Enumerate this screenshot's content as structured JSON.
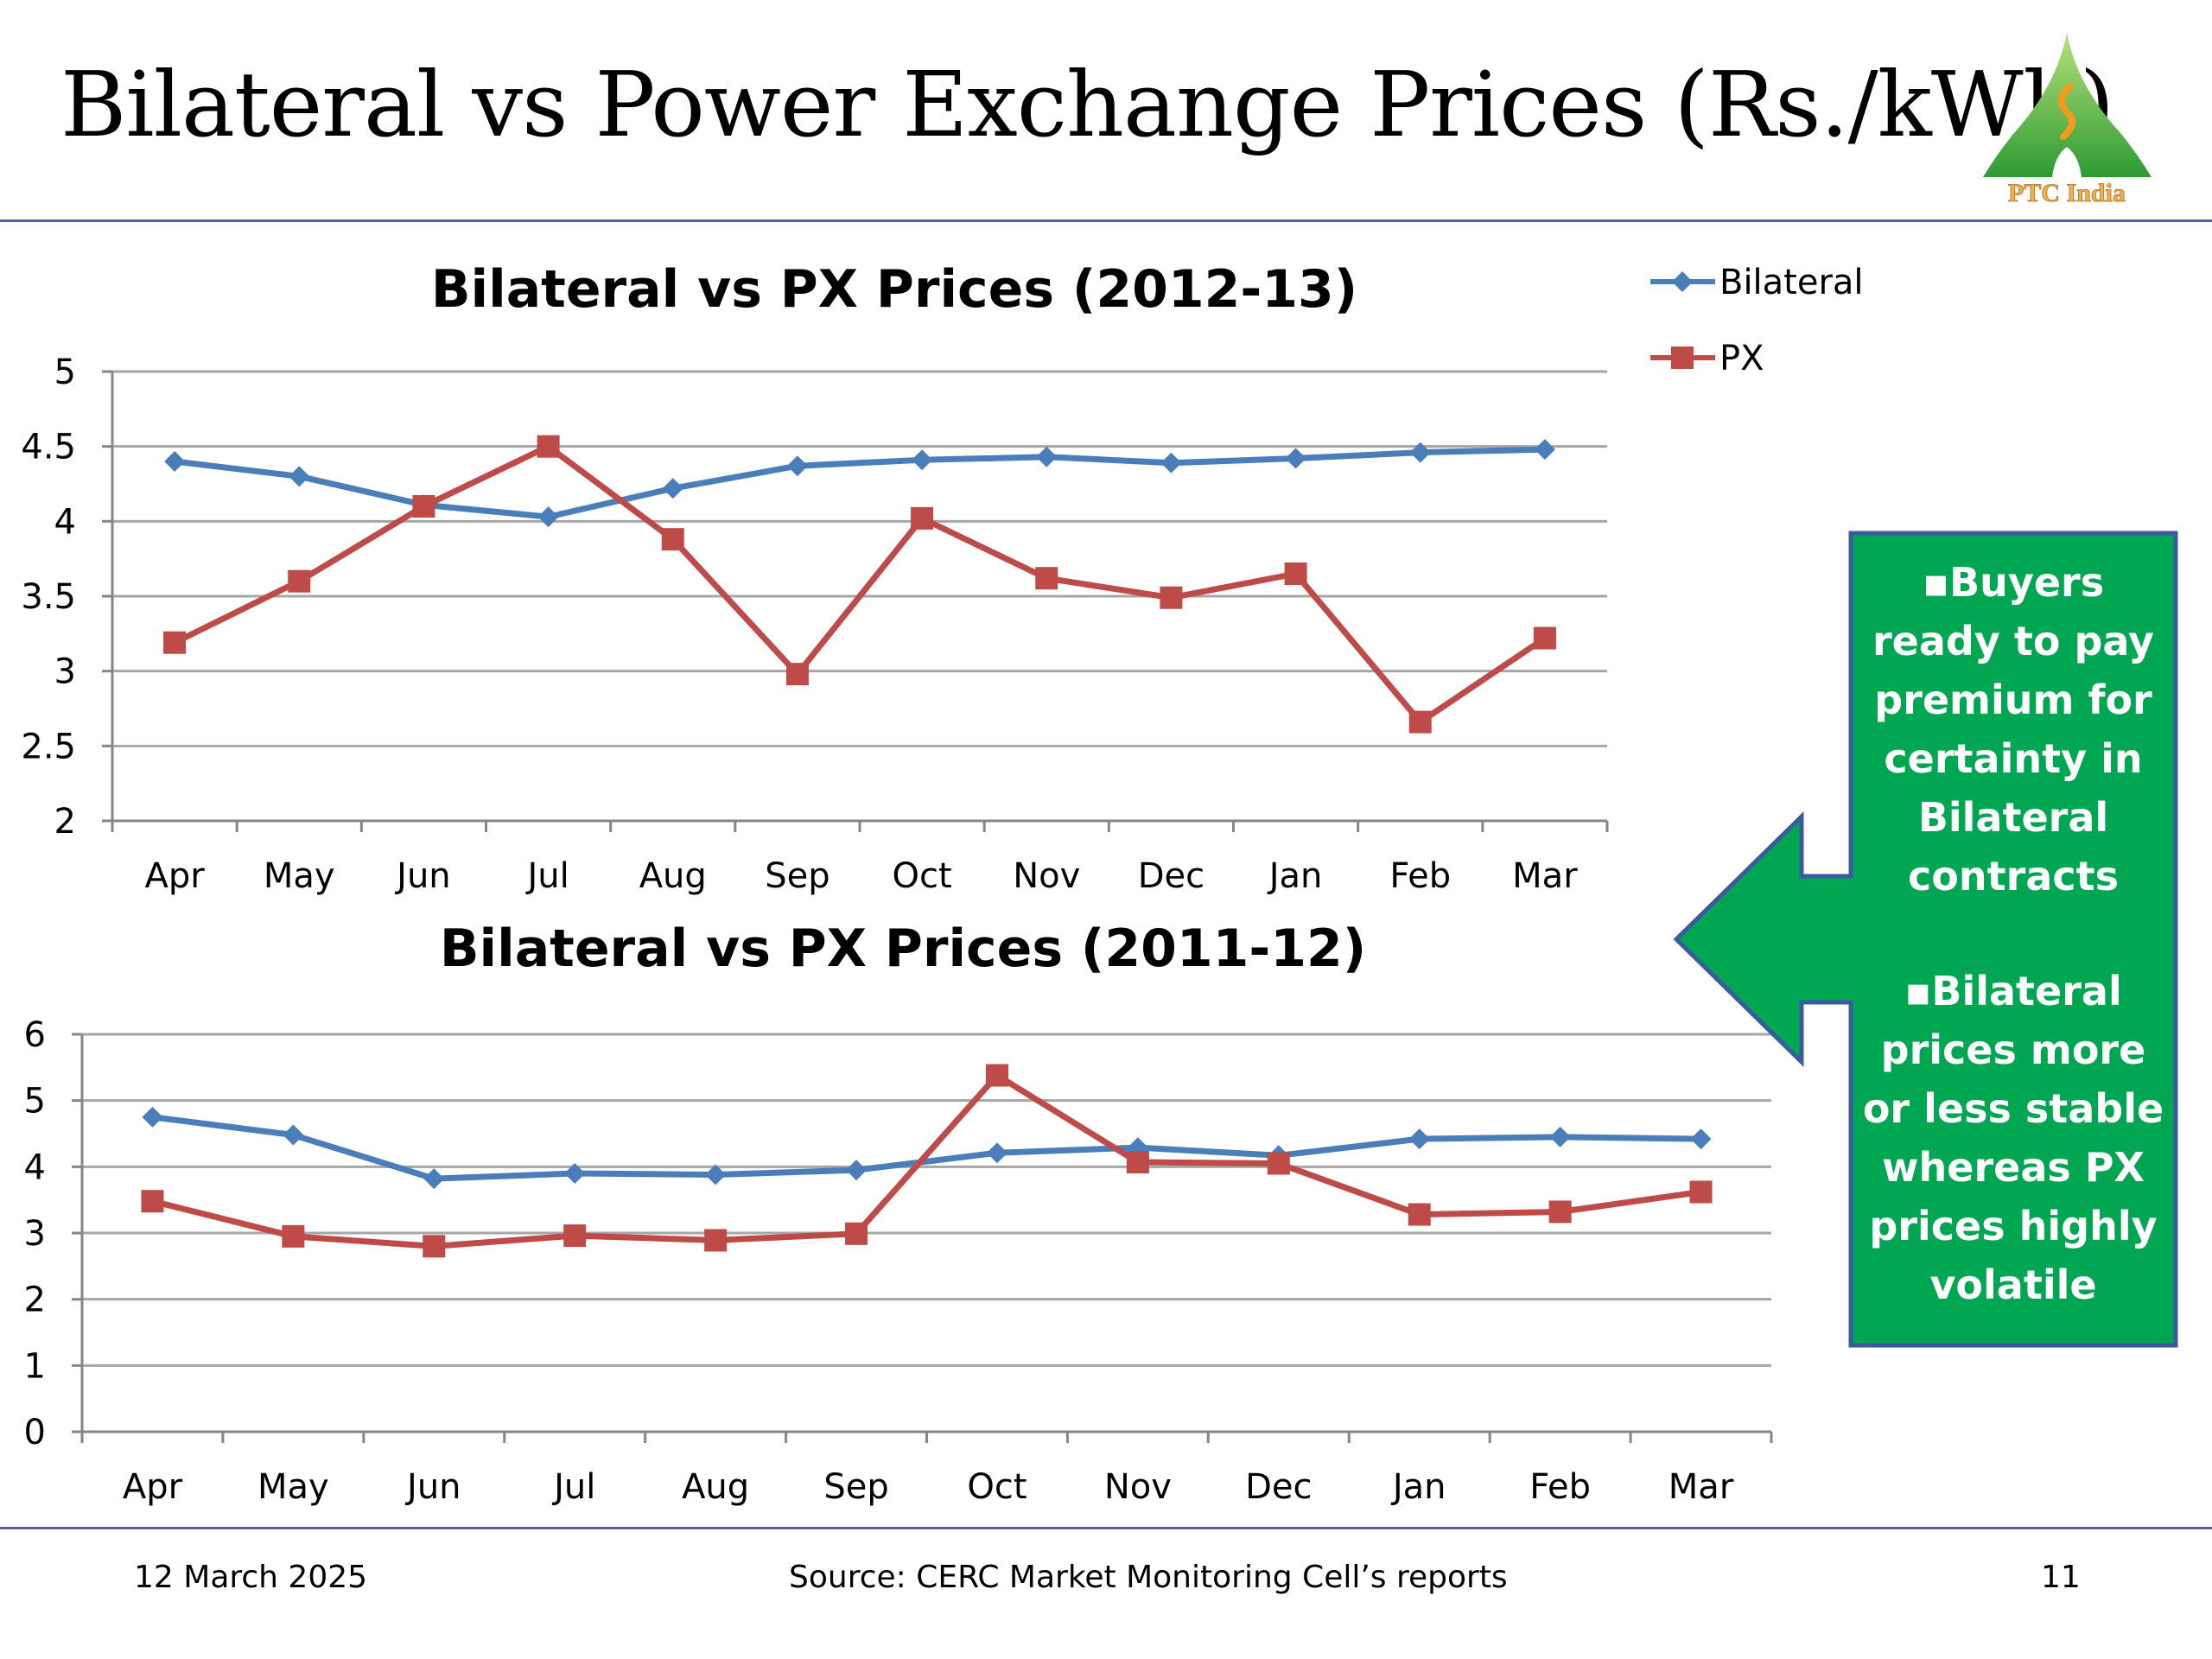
{
  "slide": {
    "title": "Bilateral vs Power Exchange Prices (Rs./kWh)",
    "logo_text": "PTC India",
    "callout": {
      "bullet": "▪",
      "points": [
        "Buyers ready to pay premium for certainty  in Bilateral contracts",
        "Bilateral prices more or less stable whereas PX prices highly volatile"
      ],
      "fill": "#00a651",
      "border": "#3b5aa0"
    },
    "footer": {
      "date": "12 March 2025",
      "source": "Source: CERC Market Monitoring Cell’s reports",
      "page": "11"
    },
    "colors": {
      "bilateral": "#4a7ebb",
      "px": "#be4b48",
      "rule": "#5a5aa6"
    }
  },
  "chart_data": [
    {
      "type": "line",
      "title": "Bilateral vs PX Prices (2012-13)",
      "categories": [
        "Apr",
        "May",
        "Jun",
        "Jul",
        "Aug",
        "Sep",
        "Oct",
        "Nov",
        "Dec",
        "Jan",
        "Feb",
        "Mar"
      ],
      "series": [
        {
          "name": "Bilateral",
          "marker": "diamond",
          "color": "#4a7ebb",
          "values": [
            4.4,
            4.3,
            4.11,
            4.03,
            4.22,
            4.37,
            4.41,
            4.43,
            4.39,
            4.42,
            4.46,
            4.48
          ]
        },
        {
          "name": "PX",
          "marker": "square",
          "color": "#be4b48",
          "values": [
            3.19,
            3.6,
            4.1,
            4.5,
            3.88,
            2.98,
            4.02,
            3.62,
            3.49,
            3.65,
            2.66,
            3.22
          ]
        }
      ],
      "ylim": [
        2,
        5
      ],
      "yticks": [
        "2",
        "2.5",
        "3",
        "3.5",
        "4",
        "4.5",
        "5"
      ],
      "grid": true,
      "legend": "right"
    },
    {
      "type": "line",
      "title": "Bilateral vs PX Prices (2011-12)",
      "categories": [
        "Apr",
        "May",
        "Jun",
        "Jul",
        "Aug",
        "Sep",
        "Oct",
        "Nov",
        "Dec",
        "Jan",
        "Feb",
        "Mar"
      ],
      "series": [
        {
          "name": "Bilateral",
          "marker": "diamond",
          "color": "#4a7ebb",
          "values": [
            4.75,
            4.48,
            3.82,
            3.9,
            3.88,
            3.95,
            4.21,
            4.29,
            4.17,
            4.42,
            4.45,
            4.42
          ]
        },
        {
          "name": "PX",
          "marker": "square",
          "color": "#be4b48",
          "values": [
            3.48,
            2.95,
            2.8,
            2.96,
            2.89,
            2.99,
            5.38,
            4.07,
            4.05,
            3.28,
            3.32,
            3.62
          ]
        }
      ],
      "ylim": [
        0,
        6
      ],
      "yticks": [
        "0",
        "1",
        "2",
        "3",
        "4",
        "5",
        "6"
      ],
      "grid": true,
      "legend": "none"
    }
  ]
}
